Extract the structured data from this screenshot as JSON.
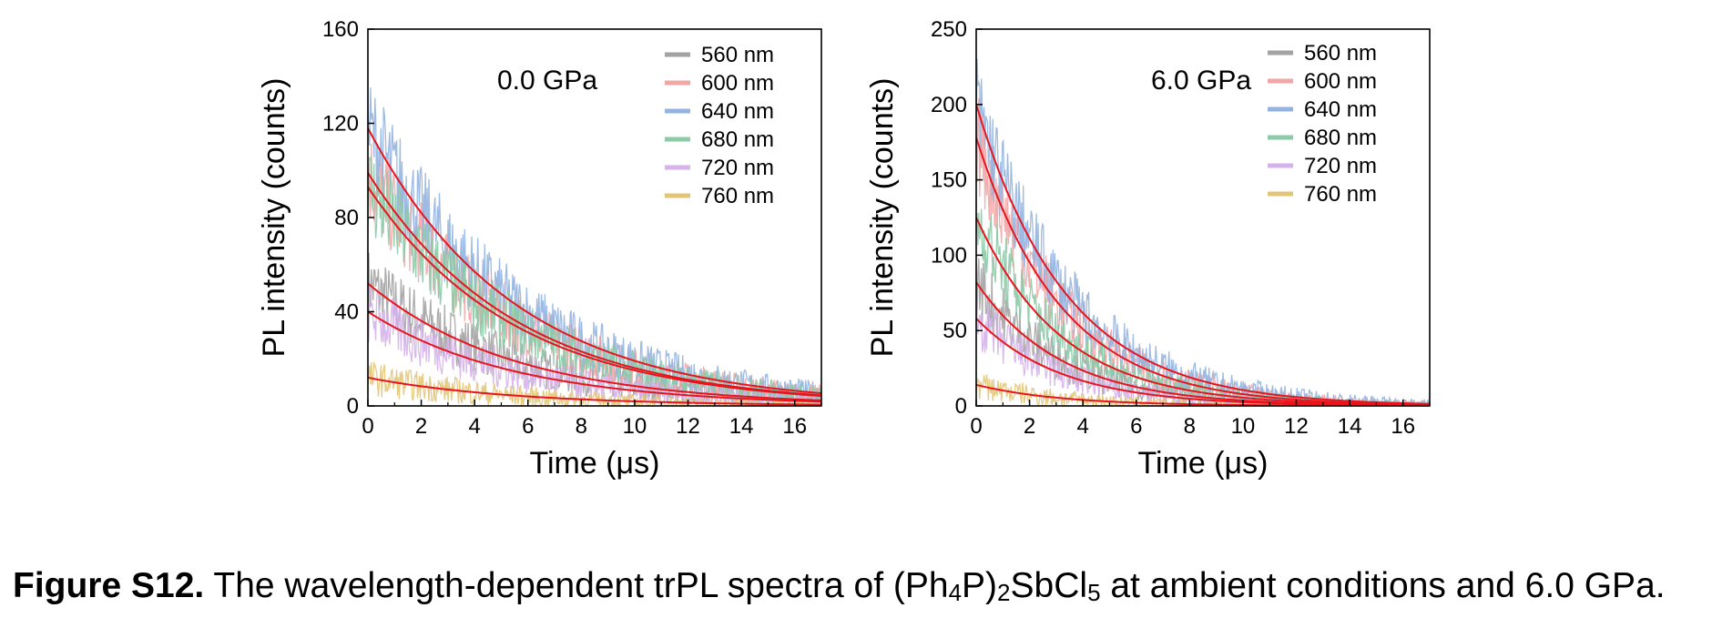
{
  "caption": {
    "label": "Figure S12.",
    "part1": " The wavelength-dependent trPL spectra of (Ph",
    "sub1": "4",
    "part2": "P)",
    "sub2": "2",
    "part3": "SbCl",
    "sub3": "5",
    "part4": " at ambient conditions and 6.0 GPa."
  },
  "chart_data": [
    {
      "type": "line",
      "annotation": "0.0 GPa",
      "xlabel": "Time (μs)",
      "ylabel": "PL intensity (counts)",
      "xlim": [
        0,
        17
      ],
      "ylim": [
        0,
        160
      ],
      "xticks": [
        0,
        2,
        4,
        6,
        8,
        10,
        12,
        14,
        16
      ],
      "yticks": [
        0,
        40,
        80,
        120,
        160
      ],
      "legend_position": "top-right",
      "fit_color": "#e8141c",
      "series": [
        {
          "name": "560 nm",
          "color": "#a3a3a3",
          "a0": 52,
          "tau": 5.5
        },
        {
          "name": "600 nm",
          "color": "#f2a6a6",
          "a0": 99,
          "tau": 5.5
        },
        {
          "name": "640 nm",
          "color": "#93b4e0",
          "a0": 118,
          "tau": 5.5
        },
        {
          "name": "680 nm",
          "color": "#8ccaa8",
          "a0": 93,
          "tau": 5.5
        },
        {
          "name": "720 nm",
          "color": "#d5b3ea",
          "a0": 40,
          "tau": 5.5
        },
        {
          "name": "760 nm",
          "color": "#e3c578",
          "a0": 12,
          "tau": 5.5
        }
      ]
    },
    {
      "type": "line",
      "annotation": "6.0 GPa",
      "xlabel": "Time (μs)",
      "ylabel": "PL intensity (counts)",
      "xlim": [
        0,
        17
      ],
      "ylim": [
        0,
        250
      ],
      "xticks": [
        0,
        2,
        4,
        6,
        8,
        10,
        12,
        14,
        16
      ],
      "yticks": [
        0,
        50,
        100,
        150,
        200,
        250
      ],
      "legend_position": "top-right",
      "fit_color": "#e8141c",
      "series": [
        {
          "name": "560 nm",
          "color": "#a3a3a3",
          "a0": 82,
          "tau": 3.2
        },
        {
          "name": "600 nm",
          "color": "#f2a6a6",
          "a0": 178,
          "tau": 3.2
        },
        {
          "name": "640 nm",
          "color": "#93b4e0",
          "a0": 200,
          "tau": 3.4
        },
        {
          "name": "680 nm",
          "color": "#8ccaa8",
          "a0": 125,
          "tau": 3.2
        },
        {
          "name": "720 nm",
          "color": "#d5b3ea",
          "a0": 58,
          "tau": 3.2
        },
        {
          "name": "760 nm",
          "color": "#e3c578",
          "a0": 14,
          "tau": 3.2
        }
      ]
    }
  ]
}
